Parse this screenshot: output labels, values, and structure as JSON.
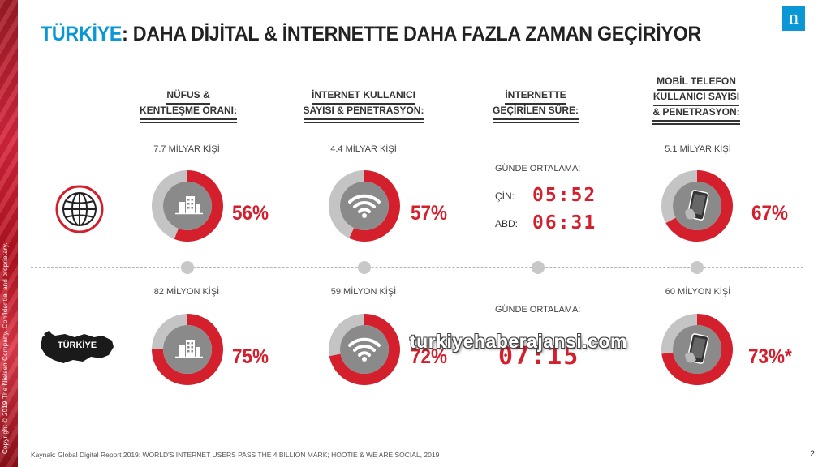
{
  "header": {
    "title_accent": "TÜRKİYE",
    "title_rest": ": DAHA DİJİTAL & İNTERNETTE DAHA FAZLA ZAMAN GEÇİRİYOR",
    "logo": "n"
  },
  "columns": [
    {
      "heading": [
        "NÜFUS &",
        "KENTLEŞME ORANI:"
      ]
    },
    {
      "heading": [
        "İNTERNET KULLANICI",
        "SAYISI & PENETRASYON:"
      ]
    },
    {
      "heading": [
        "İNTERNETTE",
        "GEÇİRİLEN SÜRE:"
      ]
    },
    {
      "heading": [
        "MOBİL TELEFON",
        "KULLANICI SAYISI",
        "& PENETRASYON:"
      ]
    }
  ],
  "world": {
    "population": "7.7 MİLYAR KİŞİ",
    "internet_users": "4.4 MİLYAR KİŞİ",
    "time_label": "GÜNDE ORTALAMA:",
    "china_label": "ÇİN:",
    "china_time": "05:52",
    "usa_label": "ABD:",
    "usa_time": "06:31",
    "mobile_users": "5.1 MİLYAR KİŞİ"
  },
  "turkey": {
    "label": "TÜRKİYE",
    "population": "82 MİLYON KİŞİ",
    "internet_users": "59 MİLYON KİŞİ",
    "time_label": "GÜNDE ORTALAMA:",
    "time": "07:15",
    "mobile_users": "60 MİLYON KİŞİ"
  },
  "chart_data": {
    "type": "pie",
    "series": [
      {
        "values": [
          56,
          57,
          67
        ],
        "labels": [
          "56%",
          "57%",
          "67%"
        ]
      },
      {
        "values": [
          75,
          72,
          73
        ],
        "labels": [
          "75%",
          "72%",
          "73%*"
        ]
      }
    ],
    "colors": {
      "filled": "#d41f2d",
      "remaining": "#c4c4c4",
      "center": "#8a8a8a"
    }
  },
  "watermark": "turkiyehaberajansi.com",
  "footer": {
    "source": "Kaynak: Global Digital Report 2019: WORLD'S INTERNET USERS PASS THE 4 BILLION MARK; HOOTIE & WE ARE SOCIAL, 2019",
    "copyright": "Copyright © 2019 The Nielsen Company. Confidential and proprietary.",
    "page": "2"
  }
}
